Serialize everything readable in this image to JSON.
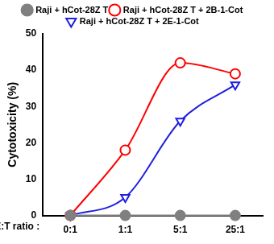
{
  "chart_data": {
    "type": "line",
    "x_label": "E:T ratio :",
    "y_label": "Cytotoxicity (%)",
    "categories": [
      "0:1",
      "1:1",
      "5:1",
      "25:1"
    ],
    "series": [
      {
        "name": "Raji + hCot-28Z T",
        "color": "#808080",
        "marker": "circle",
        "values": [
          0,
          0,
          0,
          0
        ]
      },
      {
        "name": "Raji + hCot-28Z T + 2B-1-Cot",
        "color": "#ff0000",
        "marker": "circle-open",
        "values": [
          0,
          18,
          42,
          39
        ]
      },
      {
        "name": "Raji + hCot-28Z T + 2E-1-Cot",
        "color": "#1f1fe0",
        "marker": "triangle-down-open",
        "values": [
          0,
          5,
          26,
          36
        ]
      }
    ],
    "ylim": [
      0,
      50
    ],
    "yticks": [
      0,
      10,
      20,
      30,
      40,
      50
    ],
    "grid": false,
    "legend": "top"
  }
}
